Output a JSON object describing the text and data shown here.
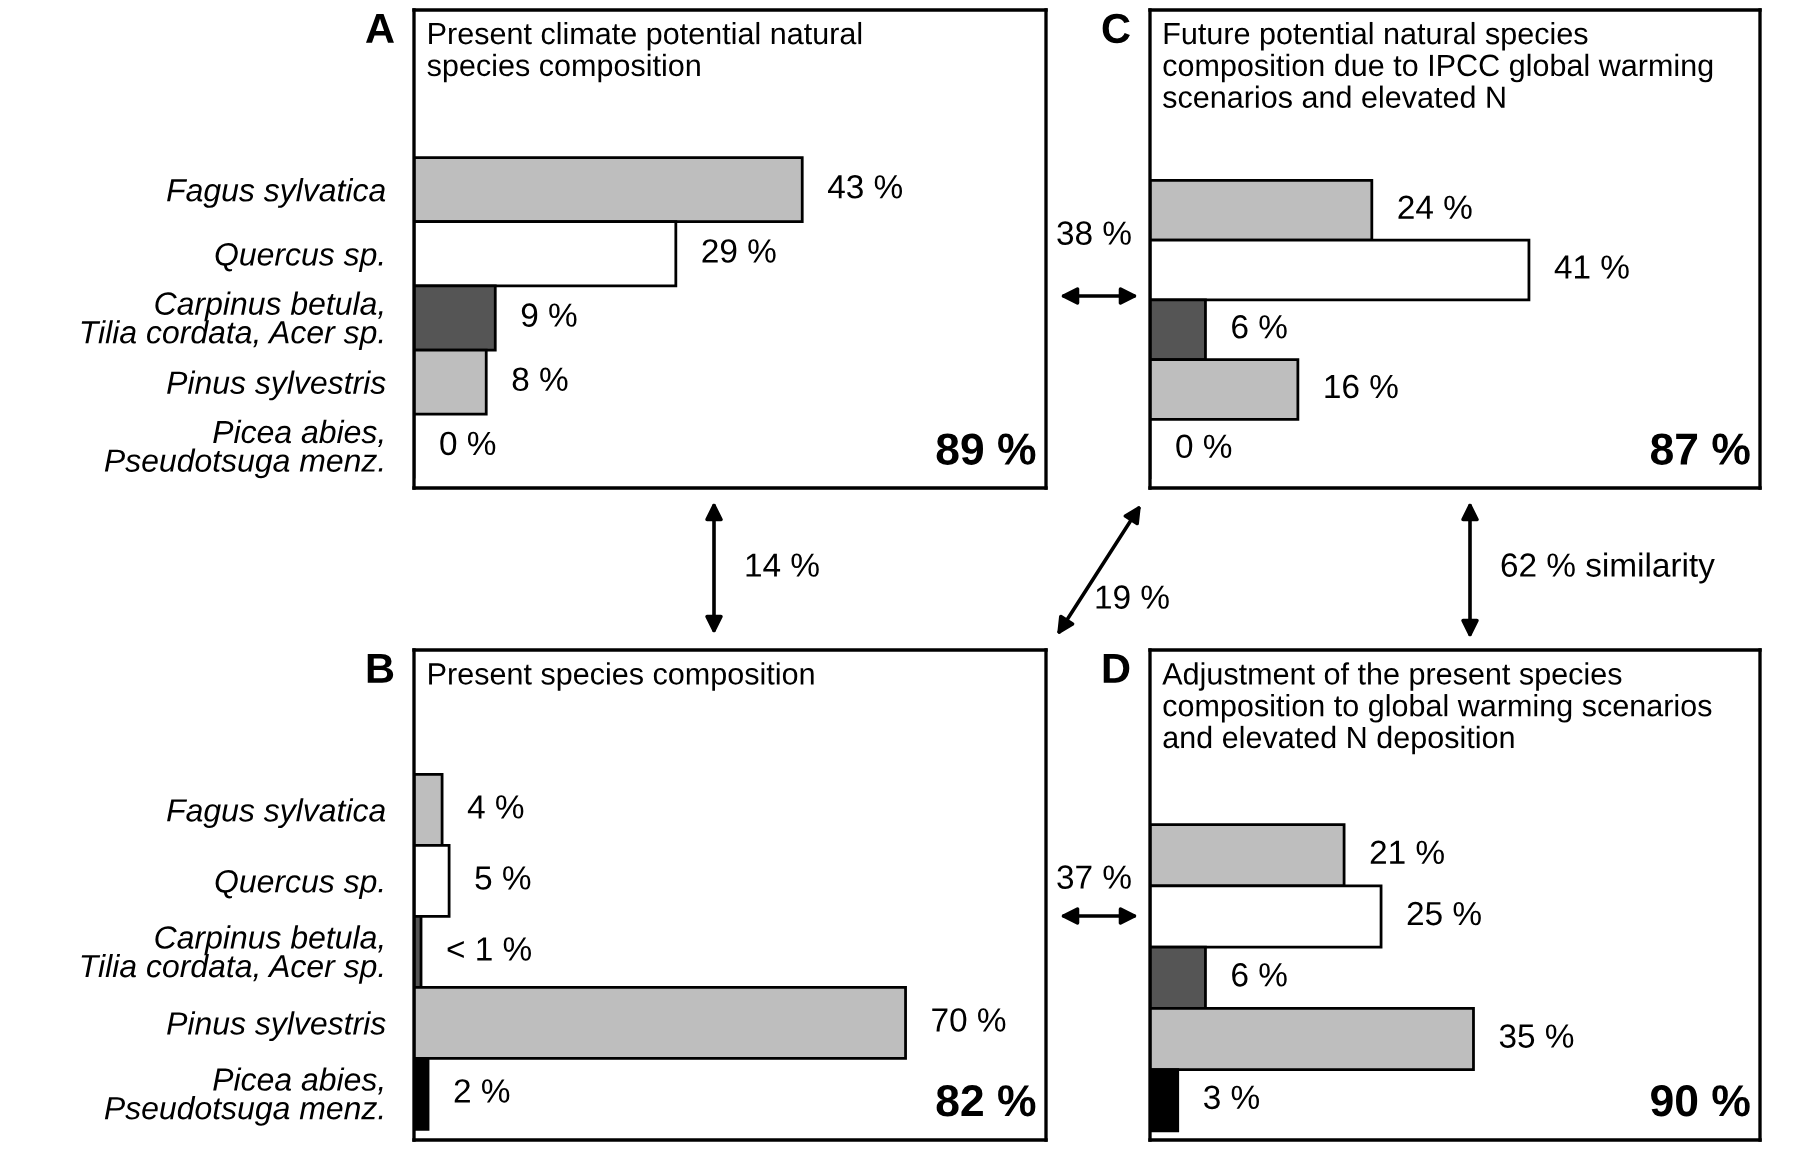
{
  "chart_data": [
    {
      "type": "bar",
      "orientation": "horizontal",
      "title": "Present climate potential natural\nspecies composition",
      "categories": [
        "Fagus sylvatica",
        "Quercus sp.",
        "Carpinus betula,\nTilia cordata, Acer sp.",
        "Pinus sylvestris",
        "Picea abies,\nPseudotsuga menz."
      ],
      "values": [
        43,
        29,
        9,
        8,
        0
      ],
      "value_labels": [
        "43 %",
        "29 %",
        "9 %",
        "8 %",
        "0 %"
      ],
      "colors": [
        "#bebebe",
        "#ffffff",
        "#555555",
        "#bebebe",
        "#000000"
      ],
      "xlim": [
        0,
        70
      ],
      "tick_labels": "y",
      "grid": false,
      "legend": false,
      "annotations": [
        "A",
        "89 %",
        "38 %",
        "14 %"
      ]
    },
    {
      "type": "bar",
      "orientation": "horizontal",
      "title": "Present species composition",
      "categories": [
        "Fagus sylvatica",
        "Quercus sp.",
        "Carpinus betula,\nTilia cordata, Acer sp.",
        "Pinus sylvestris",
        "Picea abies,\nPseudotsuga menz."
      ],
      "values": [
        4,
        5,
        1,
        70,
        2
      ],
      "value_labels": [
        "4 %",
        "5 %",
        "< 1 %",
        "70 %",
        "2 %"
      ],
      "colors": [
        "#bebebe",
        "#ffffff",
        "#555555",
        "#bebebe",
        "#000000"
      ],
      "xlim": [
        0,
        90
      ],
      "tick_labels": "y",
      "grid": false,
      "legend": false,
      "annotations": [
        "B",
        "82 %",
        "37 %"
      ]
    },
    {
      "type": "bar",
      "orientation": "horizontal",
      "title": "Future potential natural species\ncomposition due to IPCC global warming\nscenarios and elevated N",
      "categories": [
        null,
        null,
        null,
        null,
        null
      ],
      "values": [
        24,
        41,
        6,
        16,
        0
      ],
      "value_labels": [
        "24 %",
        "41 %",
        "6 %",
        "16 %",
        "0 %"
      ],
      "colors": [
        "#bebebe",
        "#ffffff",
        "#555555",
        "#bebebe",
        "#000000"
      ],
      "xlim": [
        0,
        66
      ],
      "tick_labels": false,
      "grid": false,
      "legend": false,
      "annotations": [
        "C",
        "87 %",
        "19 %",
        "62 % similarity"
      ]
    },
    {
      "type": "bar",
      "orientation": "horizontal",
      "title": "Adjustment of the present species\ncomposition to global warming scenarios\nand elevated N deposition",
      "categories": [
        null,
        null,
        null,
        null,
        null
      ],
      "values": [
        21,
        25,
        6,
        35,
        3
      ],
      "value_labels": [
        "21 %",
        "25 %",
        "6 %",
        "35 %",
        "3 %"
      ],
      "colors": [
        "#bebebe",
        "#ffffff",
        "#555555",
        "#bebebe",
        "#000000"
      ],
      "xlim": [
        0,
        66
      ],
      "tick_labels": false,
      "grid": false,
      "legend": false,
      "annotations": [
        "D",
        "90 %"
      ]
    }
  ]
}
